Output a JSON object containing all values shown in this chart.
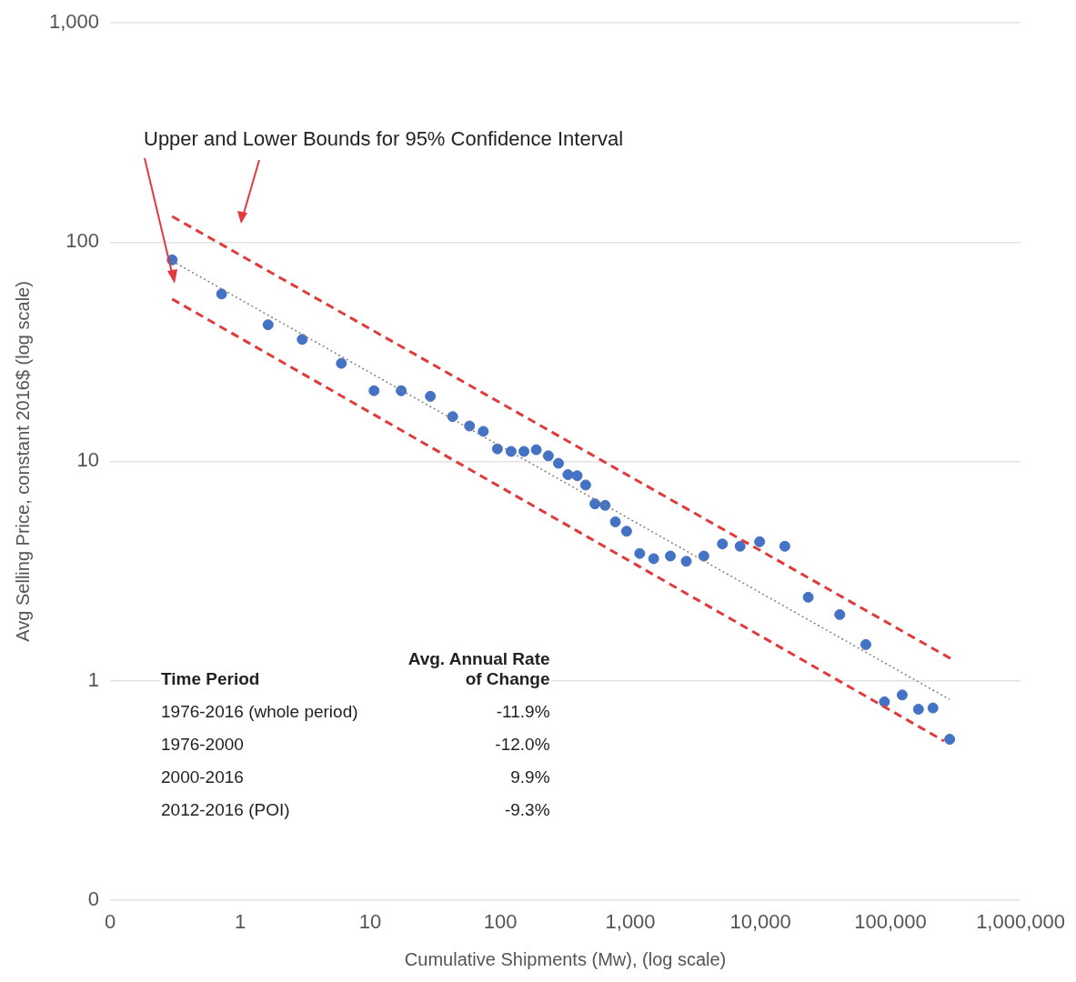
{
  "chart_data": {
    "type": "scatter",
    "xlabel": "Cumulative Shipments (Mw), (log scale)",
    "ylabel": "Avg Selling Price, constant 2016$ (log scale)",
    "log": "xy",
    "grid": "y",
    "legend": false,
    "xlim": [
      0.1,
      1000000
    ],
    "xticks": [
      {
        "value": 0.1,
        "label": "0"
      },
      1,
      10,
      100,
      {
        "value": 1000,
        "label": "1,000"
      },
      {
        "value": 10000,
        "label": "10,000"
      },
      {
        "value": 100000,
        "label": "100,000"
      },
      {
        "value": 1000000,
        "label": "1,000,000"
      }
    ],
    "ylim": [
      0.1,
      1000
    ],
    "yticks": [
      {
        "value": 0.1,
        "label": "0"
      },
      1,
      10,
      100,
      {
        "value": 1000,
        "label": "1,000"
      }
    ],
    "series": [
      {
        "type": "line",
        "marker": "none",
        "color": "#808080",
        "line_style": "dotted",
        "x": [
          0.3,
          285000
        ],
        "values": [
          82,
          0.82
        ]
      },
      {
        "type": "line",
        "marker": "none",
        "color": "#e03a3a",
        "line_style": "dashed",
        "x": [
          0.3,
          290000
        ],
        "values": [
          131,
          1.26
        ]
      },
      {
        "type": "line",
        "marker": "none",
        "color": "#e03a3a",
        "line_style": "dashed",
        "x": [
          0.3,
          258000
        ],
        "values": [
          55,
          0.53
        ]
      },
      {
        "marker": "circle",
        "color": "#4472c4",
        "x": [
          0.3,
          0.72,
          1.64,
          3,
          6,
          10.7,
          17.3,
          29,
          43,
          58,
          74,
          95,
          121,
          152,
          189,
          234,
          280,
          331,
          390,
          453,
          534,
          640,
          767,
          935,
          1180,
          1510,
          2030,
          2690,
          3670,
          5100,
          6980,
          9860,
          15400,
          23300,
          40700,
          64600,
          89800,
          123000,
          164000,
          212000,
          285000
        ],
        "values": [
          83,
          58,
          42,
          36,
          28,
          21,
          21,
          19.8,
          16,
          14.5,
          13.7,
          11.4,
          11.1,
          11.1,
          11.3,
          10.6,
          9.8,
          8.7,
          8.6,
          7.8,
          6.4,
          6.3,
          5.3,
          4.8,
          3.8,
          3.6,
          3.7,
          3.5,
          3.7,
          4.2,
          4.1,
          4.3,
          4.1,
          2.4,
          2,
          1.46,
          0.8,
          0.86,
          0.74,
          0.75,
          0.54
        ]
      }
    ],
    "annotations": [
      "Upper and Lower Bounds for 95% Confidence Interval",
      "Time Period",
      "Avg. Annual Rate of Change",
      "1976-2016 (whole period)",
      "-11.9%",
      "1976-2000",
      "-12.0%",
      "2000-2016",
      "9.9%",
      "2012-2016 (POI)",
      "-9.3%"
    ]
  }
}
